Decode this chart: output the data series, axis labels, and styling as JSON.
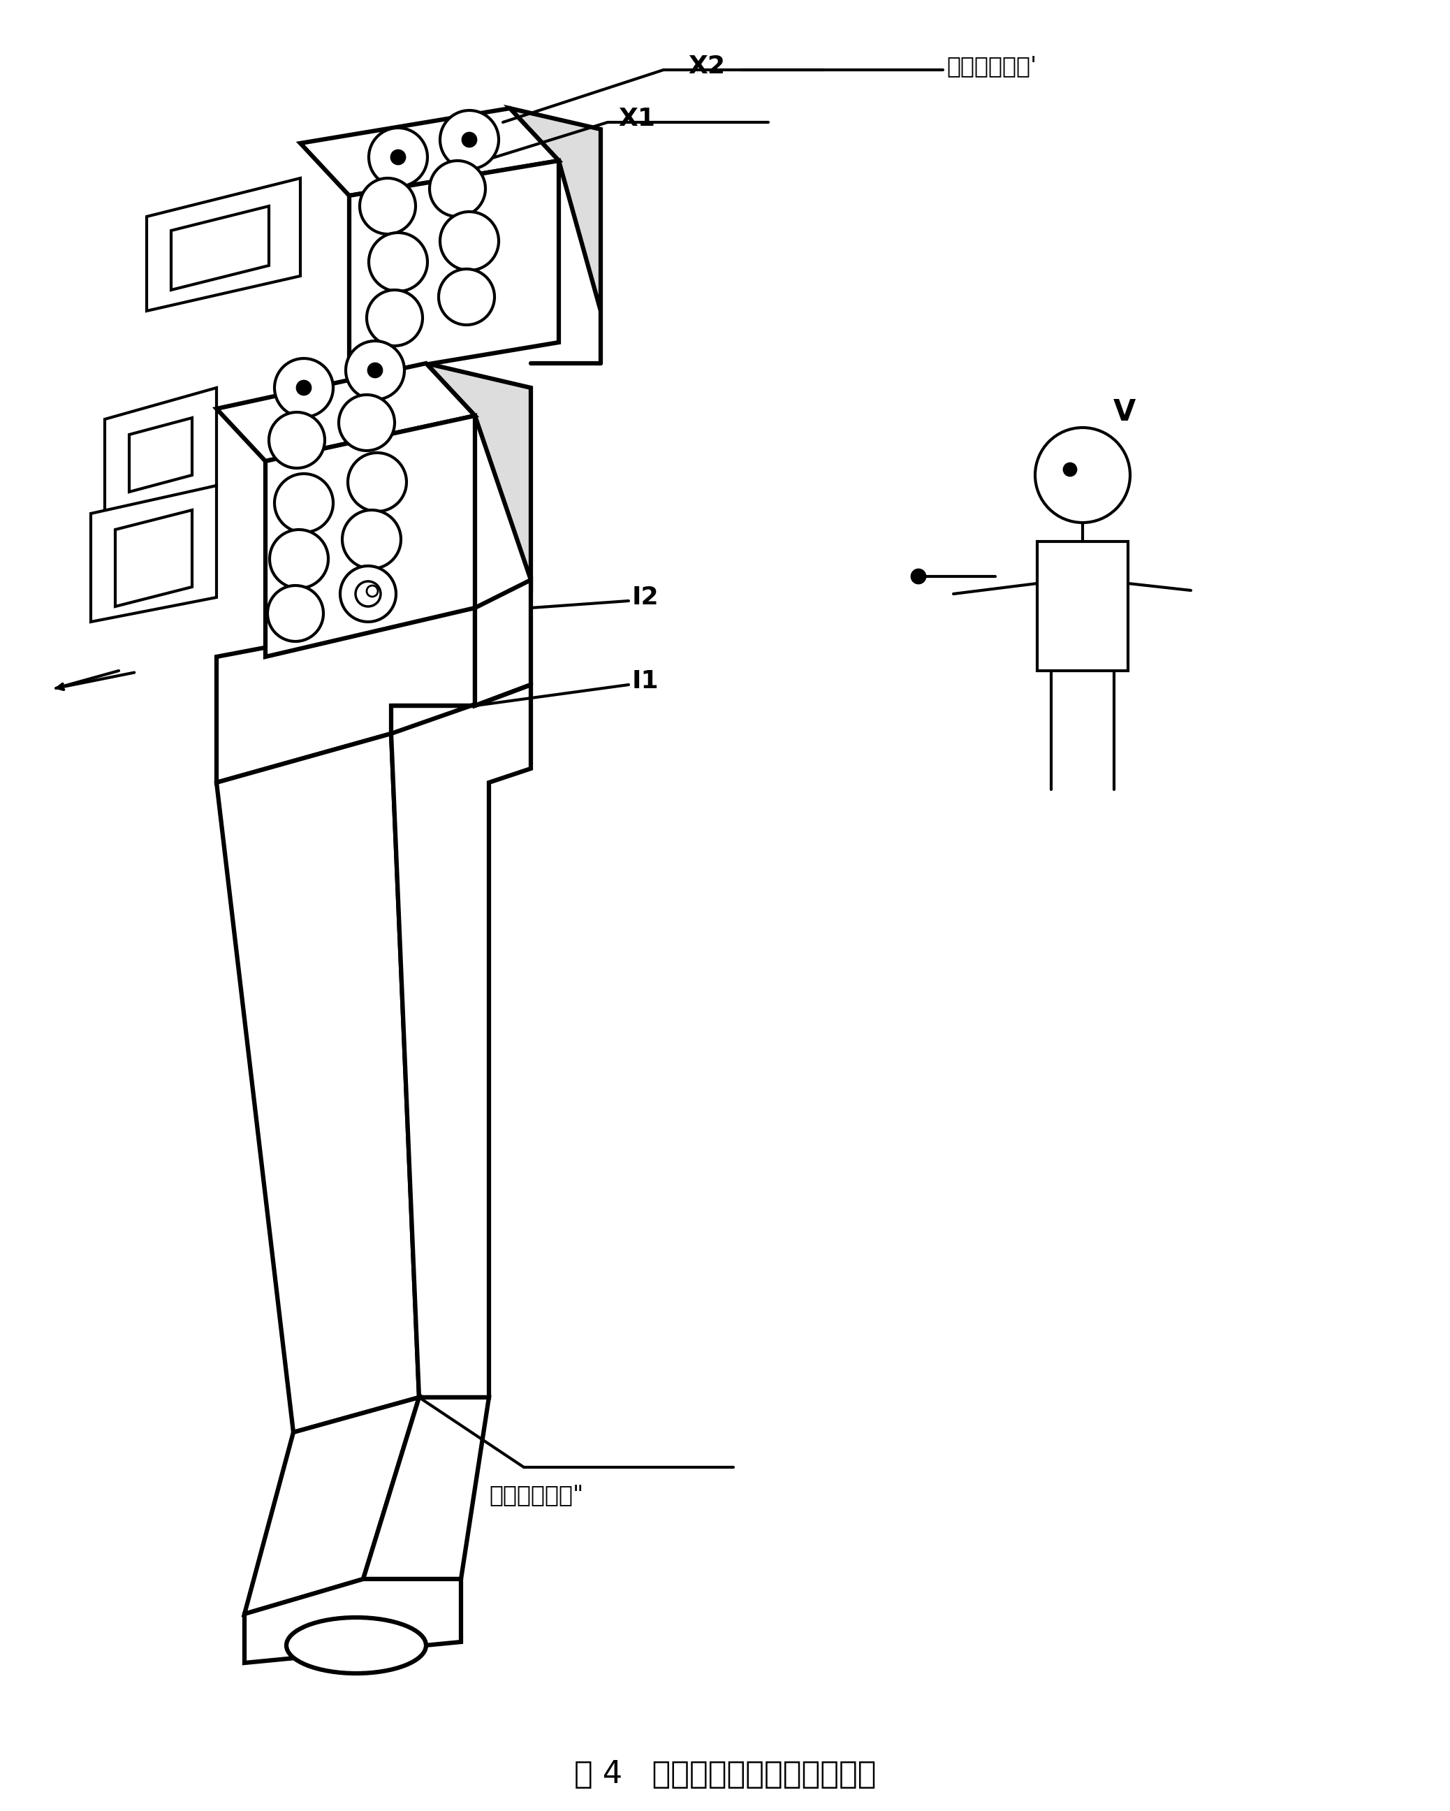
{
  "background_color": "#ffffff",
  "title": "图 4   直列式内燃机观察者的位置",
  "title_fontsize": 32,
  "label_x2": "X2",
  "label_x1": "X1",
  "label_i2": "I2",
  "label_i1": "I1",
  "label_v": "V",
  "label_top_right": "气门按排排列'",
  "label_bottom": "气门按列排列\"",
  "line_color": "#000000",
  "lw": 3.0,
  "tlw": 4.5
}
